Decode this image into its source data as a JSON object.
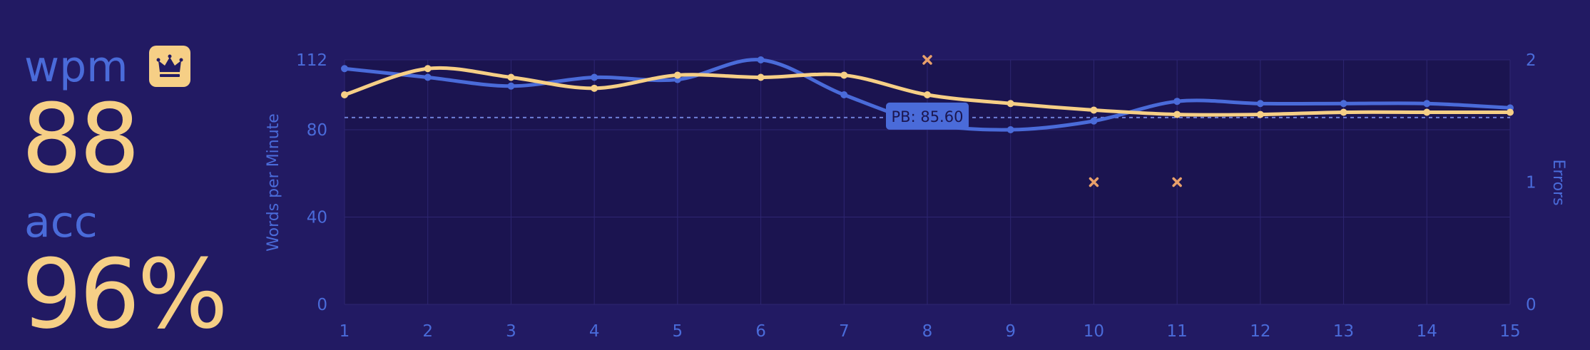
{
  "stats": {
    "wpm_label": "wpm",
    "wpm_value": "88",
    "acc_label": "acc",
    "acc_value": "96%",
    "badge_icon": "crown-icon"
  },
  "colors": {
    "background": "#221a63",
    "plot_background": "#1b1450",
    "accent_blue": "#4a6bd9",
    "accent_yellow": "#f6cf86",
    "error_marker": "#e8a06a",
    "grid": "#2e2672"
  },
  "chart_data": {
    "type": "line",
    "x": [
      1,
      2,
      3,
      4,
      5,
      6,
      7,
      8,
      9,
      10,
      11,
      12,
      13,
      14,
      15
    ],
    "xlim": [
      1,
      15
    ],
    "ylabel": "Words per Minute",
    "ylim": [
      0,
      112
    ],
    "yticks": [
      0,
      40,
      80,
      112
    ],
    "y2label": "Errors",
    "y2lim": [
      0,
      2
    ],
    "y2ticks": [
      0,
      1,
      2
    ],
    "grid": true,
    "series": [
      {
        "key": "raw",
        "values": [
          108,
          104,
          100,
          104,
          103,
          112,
          96,
          83,
          80,
          84,
          93,
          92,
          92,
          92,
          90
        ],
        "color": "#4a6bd9"
      },
      {
        "key": "wpm",
        "values": [
          96,
          108,
          104,
          99,
          105,
          104,
          105,
          96,
          92,
          89,
          87,
          87,
          88,
          88,
          88
        ],
        "color": "#f6cf86"
      }
    ],
    "errors": [
      {
        "x": 8,
        "value": 2
      },
      {
        "x": 10,
        "value": 1
      },
      {
        "x": 11,
        "value": 1
      }
    ],
    "personal_best": {
      "value": 85.6,
      "label": "PB: 85.60",
      "x_anchor": 8
    }
  }
}
